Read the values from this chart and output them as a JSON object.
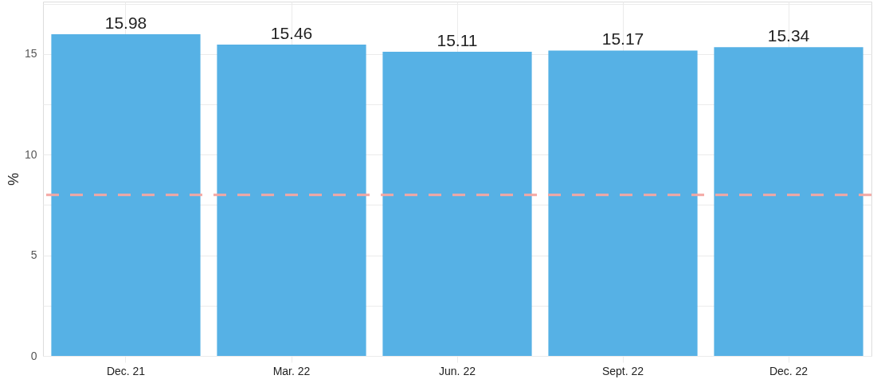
{
  "chart_data": {
    "type": "bar",
    "ylabel": "%",
    "categories": [
      "Dec. 21",
      "Mar. 22",
      "Jun. 22",
      "Sept. 22",
      "Dec. 22"
    ],
    "values": [
      15.98,
      15.46,
      15.11,
      15.17,
      15.34
    ],
    "color": "#56b1e5",
    "ylim": [
      0,
      17.6
    ],
    "yticks": [
      0,
      {
        "value": 2.5,
        "label": null
      },
      5,
      {
        "value": 7.5,
        "label": null
      },
      10,
      {
        "value": 12.5,
        "label": null
      },
      15,
      {
        "value": 17.5,
        "label": null
      }
    ],
    "ref_lines": [
      {
        "axis": "y",
        "value": 8,
        "color": "#f4a7a3",
        "line_style": "dashed"
      }
    ],
    "data_labels": true,
    "grid": true
  }
}
